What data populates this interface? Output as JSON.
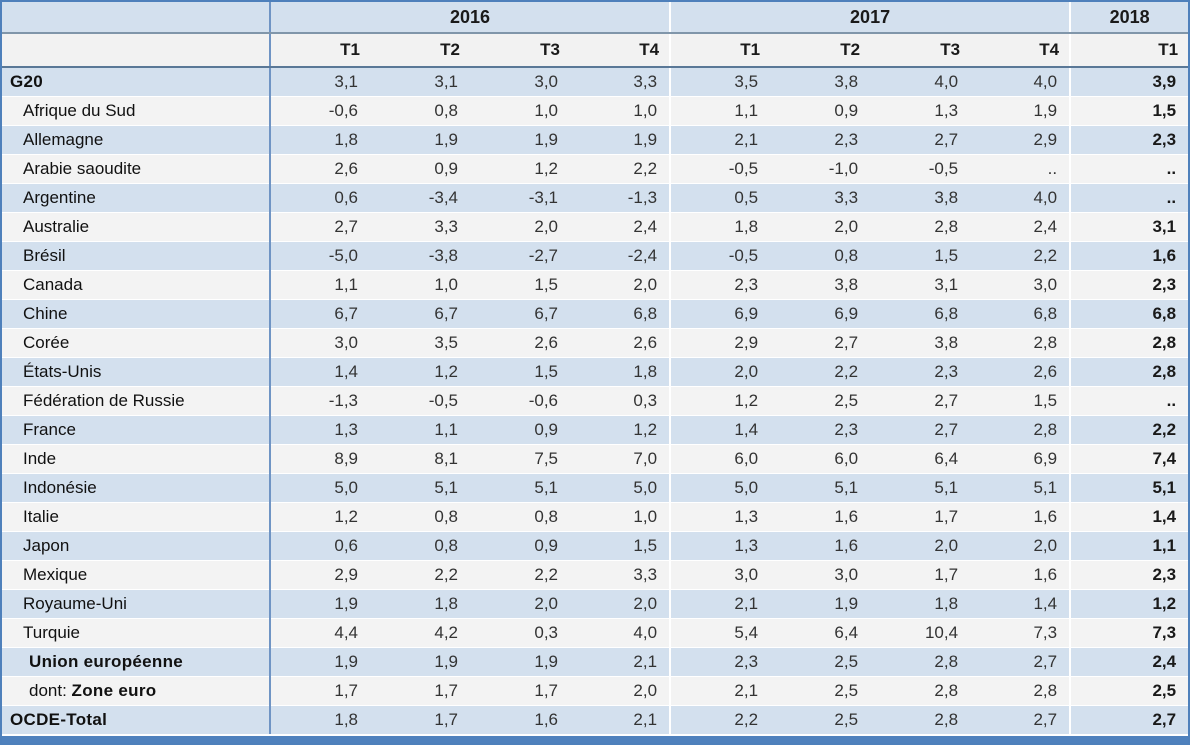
{
  "table": {
    "year_groups": [
      {
        "label": "2016",
        "span": 4
      },
      {
        "label": "2017",
        "span": 4
      },
      {
        "label": "2018",
        "span": 1
      }
    ],
    "quarter_headers": [
      "T1",
      "T2",
      "T3",
      "T4",
      "T1",
      "T2",
      "T3",
      "T4",
      "T1"
    ],
    "missing_marker": "..",
    "rows": [
      {
        "label": "G20",
        "prefix": "",
        "bold": true,
        "indent": 0,
        "values": [
          "3,1",
          "3,1",
          "3,0",
          "3,3",
          "3,5",
          "3,8",
          "4,0",
          "4,0",
          "3,9"
        ]
      },
      {
        "label": "Afrique du Sud",
        "prefix": "",
        "bold": false,
        "indent": 1,
        "values": [
          "-0,6",
          "0,8",
          "1,0",
          "1,0",
          "1,1",
          "0,9",
          "1,3",
          "1,9",
          "1,5"
        ]
      },
      {
        "label": "Allemagne",
        "prefix": "",
        "bold": false,
        "indent": 1,
        "values": [
          "1,8",
          "1,9",
          "1,9",
          "1,9",
          "2,1",
          "2,3",
          "2,7",
          "2,9",
          "2,3"
        ]
      },
      {
        "label": "Arabie saoudite",
        "prefix": "",
        "bold": false,
        "indent": 1,
        "values": [
          "2,6",
          "0,9",
          "1,2",
          "2,2",
          "-0,5",
          "-1,0",
          "-0,5",
          "..",
          ".."
        ]
      },
      {
        "label": "Argentine",
        "prefix": "",
        "bold": false,
        "indent": 1,
        "values": [
          "0,6",
          "-3,4",
          "-3,1",
          "-1,3",
          "0,5",
          "3,3",
          "3,8",
          "4,0",
          ".."
        ]
      },
      {
        "label": "Australie",
        "prefix": "",
        "bold": false,
        "indent": 1,
        "values": [
          "2,7",
          "3,3",
          "2,0",
          "2,4",
          "1,8",
          "2,0",
          "2,8",
          "2,4",
          "3,1"
        ]
      },
      {
        "label": "Brésil",
        "prefix": "",
        "bold": false,
        "indent": 1,
        "values": [
          "-5,0",
          "-3,8",
          "-2,7",
          "-2,4",
          "-0,5",
          "0,8",
          "1,5",
          "2,2",
          "1,6"
        ]
      },
      {
        "label": "Canada",
        "prefix": "",
        "bold": false,
        "indent": 1,
        "values": [
          "1,1",
          "1,0",
          "1,5",
          "2,0",
          "2,3",
          "3,8",
          "3,1",
          "3,0",
          "2,3"
        ]
      },
      {
        "label": "Chine",
        "prefix": "",
        "bold": false,
        "indent": 1,
        "values": [
          "6,7",
          "6,7",
          "6,7",
          "6,8",
          "6,9",
          "6,9",
          "6,8",
          "6,8",
          "6,8"
        ]
      },
      {
        "label": "Corée",
        "prefix": "",
        "bold": false,
        "indent": 1,
        "values": [
          "3,0",
          "3,5",
          "2,6",
          "2,6",
          "2,9",
          "2,7",
          "3,8",
          "2,8",
          "2,8"
        ]
      },
      {
        "label": "États-Unis",
        "prefix": "",
        "bold": false,
        "indent": 1,
        "values": [
          "1,4",
          "1,2",
          "1,5",
          "1,8",
          "2,0",
          "2,2",
          "2,3",
          "2,6",
          "2,8"
        ]
      },
      {
        "label": "Fédération de Russie",
        "prefix": "",
        "bold": false,
        "indent": 1,
        "values": [
          "-1,3",
          "-0,5",
          "-0,6",
          "0,3",
          "1,2",
          "2,5",
          "2,7",
          "1,5",
          ".."
        ]
      },
      {
        "label": "France",
        "prefix": "",
        "bold": false,
        "indent": 1,
        "values": [
          "1,3",
          "1,1",
          "0,9",
          "1,2",
          "1,4",
          "2,3",
          "2,7",
          "2,8",
          "2,2"
        ]
      },
      {
        "label": "Inde",
        "prefix": "",
        "bold": false,
        "indent": 1,
        "values": [
          "8,9",
          "8,1",
          "7,5",
          "7,0",
          "6,0",
          "6,0",
          "6,4",
          "6,9",
          "7,4"
        ]
      },
      {
        "label": "Indonésie",
        "prefix": "",
        "bold": false,
        "indent": 1,
        "values": [
          "5,0",
          "5,1",
          "5,1",
          "5,0",
          "5,0",
          "5,1",
          "5,1",
          "5,1",
          "5,1"
        ]
      },
      {
        "label": "Italie",
        "prefix": "",
        "bold": false,
        "indent": 1,
        "values": [
          "1,2",
          "0,8",
          "0,8",
          "1,0",
          "1,3",
          "1,6",
          "1,7",
          "1,6",
          "1,4"
        ]
      },
      {
        "label": "Japon",
        "prefix": "",
        "bold": false,
        "indent": 1,
        "values": [
          "0,6",
          "0,8",
          "0,9",
          "1,5",
          "1,3",
          "1,6",
          "2,0",
          "2,0",
          "1,1"
        ]
      },
      {
        "label": "Mexique",
        "prefix": "",
        "bold": false,
        "indent": 1,
        "values": [
          "2,9",
          "2,2",
          "2,2",
          "3,3",
          "3,0",
          "3,0",
          "1,7",
          "1,6",
          "2,3"
        ]
      },
      {
        "label": "Royaume-Uni",
        "prefix": "",
        "bold": false,
        "indent": 1,
        "values": [
          "1,9",
          "1,8",
          "2,0",
          "2,0",
          "2,1",
          "1,9",
          "1,8",
          "1,4",
          "1,2"
        ]
      },
      {
        "label": "Turquie",
        "prefix": "",
        "bold": false,
        "indent": 1,
        "values": [
          "4,4",
          "4,2",
          "0,3",
          "4,0",
          "5,4",
          "6,4",
          "10,4",
          "7,3",
          "7,3"
        ]
      },
      {
        "label": "Union européenne",
        "prefix": "",
        "bold": true,
        "indent": 2,
        "values": [
          "1,9",
          "1,9",
          "1,9",
          "2,1",
          "2,3",
          "2,5",
          "2,8",
          "2,7",
          "2,4"
        ]
      },
      {
        "label": "Zone euro",
        "prefix": "dont: ",
        "bold": true,
        "indent": 2,
        "values": [
          "1,7",
          "1,7",
          "1,7",
          "2,0",
          "2,1",
          "2,5",
          "2,8",
          "2,8",
          "2,5"
        ]
      },
      {
        "label": "OCDE-Total",
        "prefix": "",
        "bold": true,
        "indent": 0,
        "values": [
          "1,8",
          "1,7",
          "1,6",
          "2,1",
          "2,2",
          "2,5",
          "2,8",
          "2,7",
          "2,7"
        ]
      }
    ]
  },
  "colors": {
    "border": "#4e80bb",
    "accent_bar": "#4f81bd",
    "row_blue": "#d3e0ee",
    "row_white": "#f3f3f3",
    "header_year_bg": "#d3e0ee",
    "header_quarter_bg": "#f2f2f2",
    "column_divider": "#6f94c4",
    "header_divider_top": "#8096aa",
    "header_divider_bottom": "#5a7897",
    "text": "#2b2b2b"
  }
}
